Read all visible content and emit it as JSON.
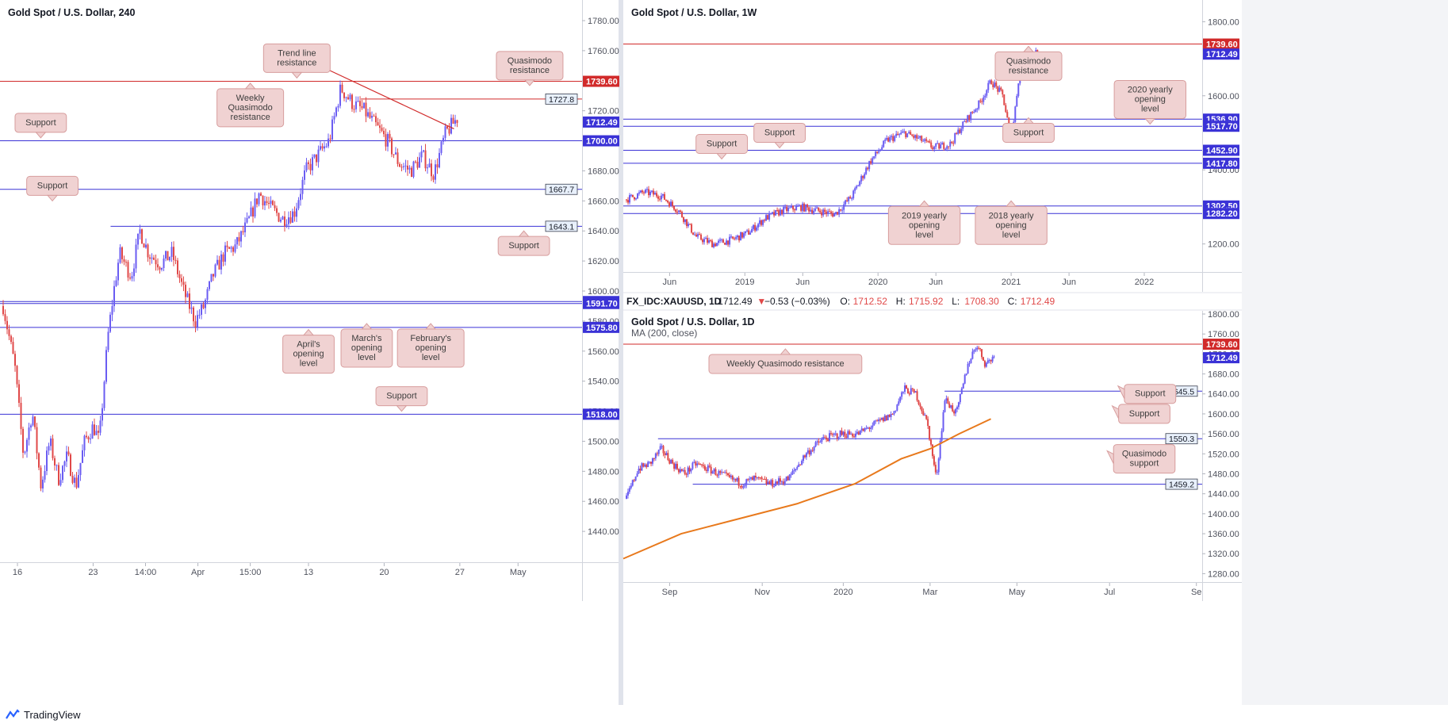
{
  "colors": {
    "support": "#3a32d6",
    "resistance": "#d12a2a",
    "up_candle": "#6a5cf2",
    "down_candle": "#e04848",
    "ma": "#e8791c",
    "callout_bg": "#f0d2d2",
    "callout_border": "#d79d9d",
    "grid": "#f0f3fa",
    "axis_text": "#50535e"
  },
  "footer": {
    "brand": "TradingView"
  },
  "chart_data": [
    {
      "id": "h4",
      "type": "candlestick",
      "title": "Gold Spot / U.S. Dollar, 240",
      "ylim": [
        1420,
        1780
      ],
      "y_ticks": [
        "1780.00",
        "1760.00",
        "1740.00",
        "1720.00",
        "1700.00",
        "1680.00",
        "1660.00",
        "1640.00",
        "1620.00",
        "1600.00",
        "1580.00",
        "1560.00",
        "1540.00",
        "1520.00",
        "1500.00",
        "1480.00",
        "1460.00",
        "1440.00"
      ],
      "x_ticks": [
        "16",
        "23",
        "14:00",
        "Apr",
        "15:00",
        "13",
        "20",
        "27",
        "May"
      ],
      "series_path": [
        [
          0.0,
          1590
        ],
        [
          0.02,
          1550
        ],
        [
          0.035,
          1490
        ],
        [
          0.05,
          1520
        ],
        [
          0.065,
          1470
        ],
        [
          0.08,
          1500
        ],
        [
          0.095,
          1475
        ],
        [
          0.11,
          1490
        ],
        [
          0.125,
          1470
        ],
        [
          0.14,
          1500
        ],
        [
          0.155,
          1510
        ],
        [
          0.165,
          1500
        ],
        [
          0.18,
          1570
        ],
        [
          0.19,
          1600
        ],
        [
          0.2,
          1625
        ],
        [
          0.22,
          1610
        ],
        [
          0.235,
          1640
        ],
        [
          0.25,
          1625
        ],
        [
          0.27,
          1618
        ],
        [
          0.29,
          1625
        ],
        [
          0.31,
          1600
        ],
        [
          0.33,
          1580
        ],
        [
          0.345,
          1590
        ],
        [
          0.36,
          1610
        ],
        [
          0.38,
          1625
        ],
        [
          0.4,
          1630
        ],
        [
          0.42,
          1645
        ],
        [
          0.44,
          1665
        ],
        [
          0.46,
          1655
        ],
        [
          0.48,
          1648
        ],
        [
          0.5,
          1652
        ],
        [
          0.52,
          1680
        ],
        [
          0.54,
          1690
        ],
        [
          0.56,
          1700
        ],
        [
          0.58,
          1735
        ],
        [
          0.6,
          1725
        ],
        [
          0.62,
          1720
        ],
        [
          0.64,
          1710
        ],
        [
          0.66,
          1700
        ],
        [
          0.68,
          1685
        ],
        [
          0.7,
          1680
        ],
        [
          0.72,
          1690
        ],
        [
          0.74,
          1678
        ],
        [
          0.76,
          1705
        ],
        [
          0.78,
          1715
        ]
      ],
      "levels": [
        {
          "value": 1739.6,
          "label": "1739.60",
          "kind": "resistance",
          "style": "filled"
        },
        {
          "value": 1727.8,
          "label": "1727.8",
          "kind": "resistance",
          "style": "boxed",
          "from": 0.62
        },
        {
          "value": 1712.49,
          "label": "1712.49",
          "kind": "price",
          "style": "filled",
          "noline": true
        },
        {
          "value": 1700.0,
          "label": "1700.00",
          "kind": "support",
          "style": "filled"
        },
        {
          "value": 1667.7,
          "label": "1667.7",
          "kind": "support",
          "style": "boxed"
        },
        {
          "value": 1643.1,
          "label": "1643.1",
          "kind": "support",
          "style": "boxed",
          "from": 0.19
        },
        {
          "value": 1593.0,
          "label": "1593.00",
          "kind": "support",
          "style": "filled"
        },
        {
          "value": 1591.7,
          "label": "1591.70",
          "kind": "support",
          "style": "filled"
        },
        {
          "value": 1575.8,
          "label": "1575.80",
          "kind": "support",
          "style": "filled"
        },
        {
          "value": 1518.0,
          "label": "1518.00",
          "kind": "support",
          "style": "filled"
        }
      ],
      "trendline": {
        "from": [
          0.56,
          1748
        ],
        "to": [
          0.78,
          1708
        ]
      },
      "annotations": [
        {
          "text": "Trend line\nresistance",
          "at": [
            0.51,
            1755
          ],
          "arrow": "down"
        },
        {
          "text": "Quasimodo\nresistance",
          "at": [
            0.91,
            1750
          ],
          "arrow": "down"
        },
        {
          "text": "Weekly\nQuasimodo\nresistance",
          "at": [
            0.43,
            1722
          ],
          "arrow": "up"
        },
        {
          "text": "Support",
          "at": [
            0.07,
            1712
          ],
          "arrow": "down"
        },
        {
          "text": "Support",
          "at": [
            0.09,
            1670
          ],
          "arrow": "down"
        },
        {
          "text": "Support",
          "at": [
            0.9,
            1630
          ],
          "arrow": "up"
        },
        {
          "text": "April's\nopening\nlevel",
          "at": [
            0.53,
            1558
          ],
          "arrow": "up"
        },
        {
          "text": "March's\nopening\nlevel",
          "at": [
            0.63,
            1562
          ],
          "arrow": "up"
        },
        {
          "text": "February's\nopening\nlevel",
          "at": [
            0.74,
            1562
          ],
          "arrow": "up"
        },
        {
          "text": "Support",
          "at": [
            0.69,
            1530
          ],
          "arrow": "down"
        }
      ]
    },
    {
      "id": "w1",
      "type": "candlestick",
      "title": "Gold Spot / U.S. Dollar, 1W",
      "ylim": [
        1120,
        1820
      ],
      "y_ticks": [
        "1800.00",
        "1600.00",
        "1400.00",
        "1200.00"
      ],
      "x_ticks": [
        "Jun",
        "2019",
        "Jun",
        "2020",
        "Jun",
        "2021",
        "Jun",
        "2022"
      ],
      "series_path": [
        [
          0.0,
          1320
        ],
        [
          0.03,
          1340
        ],
        [
          0.06,
          1330
        ],
        [
          0.09,
          1290
        ],
        [
          0.12,
          1220
        ],
        [
          0.15,
          1200
        ],
        [
          0.18,
          1210
        ],
        [
          0.21,
          1230
        ],
        [
          0.24,
          1270
        ],
        [
          0.27,
          1290
        ],
        [
          0.3,
          1300
        ],
        [
          0.33,
          1290
        ],
        [
          0.36,
          1280
        ],
        [
          0.39,
          1330
        ],
        [
          0.42,
          1420
        ],
        [
          0.45,
          1480
        ],
        [
          0.48,
          1500
        ],
        [
          0.51,
          1480
        ],
        [
          0.53,
          1460
        ],
        [
          0.56,
          1470
        ],
        [
          0.58,
          1520
        ],
        [
          0.61,
          1580
        ],
        [
          0.63,
          1640
        ],
        [
          0.65,
          1600
        ],
        [
          0.665,
          1480
        ],
        [
          0.68,
          1680
        ],
        [
          0.7,
          1710
        ],
        [
          0.71,
          1720
        ]
      ],
      "levels": [
        {
          "value": 1739.6,
          "label": "1739.60",
          "kind": "resistance",
          "style": "filled"
        },
        {
          "value": 1712.49,
          "label": "1712.49",
          "kind": "support",
          "style": "filled",
          "noline": true
        },
        {
          "value": 1536.9,
          "label": "1536.90",
          "kind": "support",
          "style": "filled"
        },
        {
          "value": 1517.7,
          "label": "1517.70",
          "kind": "support",
          "style": "filled"
        },
        {
          "value": 1452.9,
          "label": "1452.90",
          "kind": "support",
          "style": "filled"
        },
        {
          "value": 1417.8,
          "label": "1417.80",
          "kind": "support",
          "style": "filled"
        },
        {
          "value": 1302.5,
          "label": "1302.50",
          "kind": "support",
          "style": "filled"
        },
        {
          "value": 1282.2,
          "label": "1282.20",
          "kind": "support",
          "style": "filled"
        }
      ],
      "annotations": [
        {
          "text": "Quasimodo\nresistance",
          "at": [
            0.7,
            1680
          ],
          "arrow": "up"
        },
        {
          "text": "2020 yearly\nopening\nlevel",
          "at": [
            0.91,
            1590
          ],
          "arrow": "down"
        },
        {
          "text": "Support",
          "at": [
            0.7,
            1500
          ],
          "arrow": "up"
        },
        {
          "text": "Support",
          "at": [
            0.27,
            1500
          ],
          "arrow": "down"
        },
        {
          "text": "Support",
          "at": [
            0.17,
            1470
          ],
          "arrow": "down"
        },
        {
          "text": "2019 yearly\nopening\nlevel",
          "at": [
            0.52,
            1250
          ],
          "arrow": "up"
        },
        {
          "text": "2018 yearly\nopening\nlevel",
          "at": [
            0.67,
            1250
          ],
          "arrow": "up"
        }
      ]
    },
    {
      "id": "d1",
      "type": "candlestick",
      "title": "Gold Spot / U.S. Dollar, 1D",
      "subtitle": "MA (200, close)",
      "ohlc_header": {
        "symbol": "FX_IDC:XAUUSD, 1D",
        "last": "1712.49",
        "change": "−0.53 (−0.03%)",
        "o_label": "O:",
        "o": "1712.52",
        "h_label": "H:",
        "h": "1715.92",
        "l_label": "L:",
        "l": "1708.30",
        "c_label": "C:",
        "c": "1712.49"
      },
      "ylim": [
        1260,
        1800
      ],
      "y_ticks": [
        "1800.00",
        "1760.00",
        "1720.00",
        "1680.00",
        "1640.00",
        "1600.00",
        "1560.00",
        "1520.00",
        "1480.00",
        "1440.00",
        "1400.00",
        "1360.00",
        "1320.00",
        "1280.00"
      ],
      "x_ticks": [
        "Sep",
        "Nov",
        "2020",
        "Mar",
        "May",
        "Jul",
        "Se"
      ],
      "series_path": [
        [
          0.0,
          1430
        ],
        [
          0.02,
          1490
        ],
        [
          0.04,
          1500
        ],
        [
          0.06,
          1530
        ],
        [
          0.08,
          1500
        ],
        [
          0.1,
          1480
        ],
        [
          0.12,
          1500
        ],
        [
          0.14,
          1490
        ],
        [
          0.16,
          1480
        ],
        [
          0.18,
          1470
        ],
        [
          0.2,
          1460
        ],
        [
          0.22,
          1470
        ],
        [
          0.25,
          1460
        ],
        [
          0.28,
          1470
        ],
        [
          0.31,
          1520
        ],
        [
          0.34,
          1550
        ],
        [
          0.37,
          1560
        ],
        [
          0.4,
          1560
        ],
        [
          0.43,
          1580
        ],
        [
          0.46,
          1600
        ],
        [
          0.48,
          1650
        ],
        [
          0.5,
          1640
        ],
        [
          0.52,
          1580
        ],
        [
          0.535,
          1470
        ],
        [
          0.55,
          1630
        ],
        [
          0.57,
          1600
        ],
        [
          0.59,
          1700
        ],
        [
          0.605,
          1740
        ],
        [
          0.62,
          1700
        ],
        [
          0.635,
          1715
        ]
      ],
      "ma_path": [
        [
          0.0,
          1310
        ],
        [
          0.1,
          1360
        ],
        [
          0.2,
          1390
        ],
        [
          0.3,
          1420
        ],
        [
          0.4,
          1460
        ],
        [
          0.48,
          1510
        ],
        [
          0.53,
          1530
        ],
        [
          0.58,
          1560
        ],
        [
          0.635,
          1590
        ]
      ],
      "levels": [
        {
          "value": 1739.6,
          "label": "1739.60",
          "kind": "resistance",
          "style": "filled"
        },
        {
          "value": 1712.49,
          "label": "1712.49",
          "kind": "price",
          "style": "filled",
          "noline": true
        },
        {
          "value": 1645.5,
          "label": "1645.5",
          "kind": "support",
          "style": "boxed",
          "from": 0.555
        },
        {
          "value": 1550.3,
          "label": "1550.3",
          "kind": "support",
          "style": "boxed",
          "from": 0.06
        },
        {
          "value": 1459.2,
          "label": "1459.2",
          "kind": "support",
          "style": "boxed",
          "from": 0.12
        }
      ],
      "annotations": [
        {
          "text": "Weekly Quasimodo resistance",
          "at": [
            0.28,
            1700
          ],
          "arrow": "up"
        },
        {
          "text": "Support",
          "at": [
            0.91,
            1640
          ],
          "arrow": "left"
        },
        {
          "text": "Support",
          "at": [
            0.9,
            1600
          ],
          "arrow": "left"
        },
        {
          "text": "Quasimodo\nsupport",
          "at": [
            0.9,
            1510
          ],
          "arrow": "left"
        }
      ]
    }
  ]
}
